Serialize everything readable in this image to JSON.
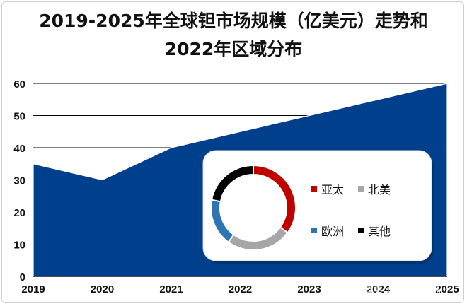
{
  "title_line1": "2019-2025年全球钽市场规模（亿美元）走势和",
  "title_line2": "2022年区域分布",
  "watermark": "网易号 | 贝哲斯咨询",
  "chart_data": [
    {
      "type": "area",
      "x": [
        "2019",
        "2020",
        "2021",
        "2022",
        "2023",
        "2024",
        "2025"
      ],
      "series": [
        {
          "values": [
            35,
            30,
            40,
            45,
            50,
            55,
            60
          ]
        }
      ],
      "yticks": [
        "0",
        "10",
        "20",
        "30",
        "40",
        "50",
        "60"
      ],
      "ylim": [
        0,
        60
      ],
      "grid": true,
      "color": "#003f8c"
    },
    {
      "type": "pie",
      "style": "donut",
      "categories": [
        "亚太",
        "北美",
        "欧洲",
        "其他"
      ],
      "values": [
        35,
        25,
        18,
        22
      ],
      "colors": [
        "#c00000",
        "#a6a6a6",
        "#2e75b6",
        "#000000"
      ],
      "legend": "right"
    }
  ]
}
